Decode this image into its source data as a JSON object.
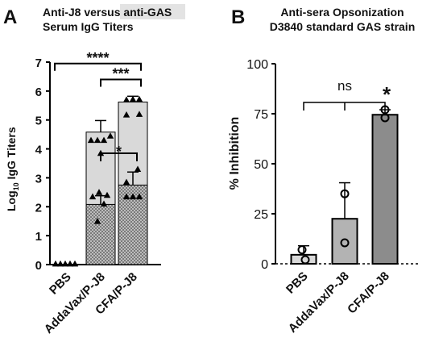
{
  "panels": {
    "a": {
      "letter": "A",
      "title_line1": "Anti-J8 versus",
      "title_highlight": "anti-GAS",
      "title_line2": "Serum IgG Titers",
      "ylabel_prefix": "Log",
      "ylabel_sub": "10",
      "ylabel_suffix": " IgG Titers"
    },
    "b": {
      "letter": "B",
      "title_line1": "Anti-sera Opsonization",
      "title_line2": "D3840 standard GAS strain",
      "ylabel": "% Inhibition"
    }
  },
  "chart_data": [
    {
      "panel": "A",
      "type": "bar",
      "title": "Anti-J8 versus anti-GAS Serum IgG Titers",
      "ylabel": "Log10 IgG Titers",
      "xlabel": "",
      "ylim": [
        0,
        7
      ],
      "yticks": [
        0,
        1,
        2,
        3,
        4,
        5,
        6,
        7
      ],
      "categories": [
        "PBS",
        "AddaVax/P-J8",
        "CFA/P-J8"
      ],
      "colors": {
        "anti_j8_bar": "#d9d9d9",
        "anti_gas_bar": "#9a9a9a"
      },
      "series": [
        {
          "values": [
            0,
            4.58,
            5.62
          ],
          "errors": [
            0,
            0.4,
            0.2
          ],
          "points": [
            [
              0,
              0,
              0,
              0,
              0
            ],
            [
              3.85,
              4.3,
              4.3,
              4.3,
              4.45
            ],
            [
              5.18,
              5.2,
              5.7,
              5.72,
              5.72
            ]
          ],
          "point_marker": "triangle-up"
        },
        {
          "values": [
            0,
            2.08,
            2.75
          ],
          "errors": [
            0,
            0.3,
            0.45
          ],
          "points": [
            [
              0,
              0,
              0,
              0,
              0
            ],
            [
              1.5,
              2.1,
              2.35,
              2.4,
              2.5
            ],
            [
              2.35,
              2.35,
              2.35,
              2.85,
              3.3
            ]
          ],
          "point_marker": "triangle-up"
        }
      ],
      "significance": [
        {
          "from": 0,
          "to": 2,
          "label": "****",
          "y": 6.95
        },
        {
          "from": 1,
          "to": 2,
          "label": "***",
          "y": 6.4
        },
        {
          "from": 1,
          "to": 2,
          "label": "*",
          "y": 3.85
        }
      ],
      "grid": false
    },
    {
      "panel": "B",
      "type": "bar",
      "title": "Anti-sera Opsonization D3840 standard GAS strain",
      "ylabel": "% Inhibition",
      "xlabel": "",
      "ylim": [
        0,
        100
      ],
      "yticks": [
        0,
        25,
        50,
        75,
        100
      ],
      "categories": [
        "PBS",
        "AddaVax/P-J8",
        "CFA/P-J8"
      ],
      "colors": {
        "bars": [
          "#d9d9d9",
          "#b3b3b3",
          "#8c8c8c"
        ]
      },
      "series": [
        {
          "values": [
            4.5,
            22.5,
            74.5
          ],
          "errors": [
            4.5,
            18,
            2.5
          ],
          "points": [
            [
              7,
              2
            ],
            [
              35,
              10.5
            ],
            [
              77,
              73
            ]
          ],
          "point_marker": "circle-open"
        }
      ],
      "significance": [
        {
          "from": 0,
          "to": 1,
          "label": "ns"
        },
        {
          "from": 0,
          "to": 2,
          "label": "*"
        }
      ],
      "baseline_dashed": true,
      "grid": false
    }
  ]
}
